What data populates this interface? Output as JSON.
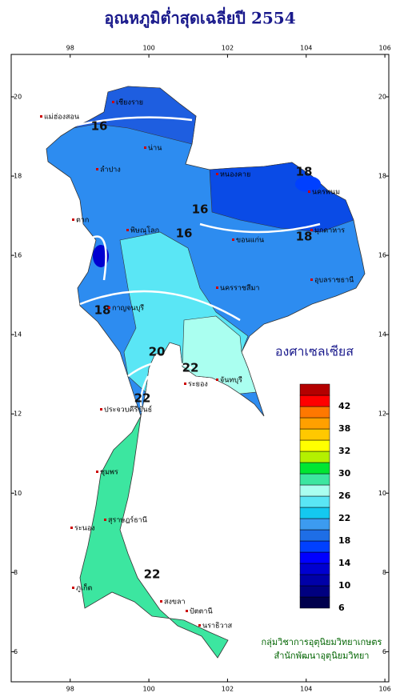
{
  "title": "อุณหภูมิต่ำสุดเฉลี่ยปี 2554",
  "map": {
    "xlim": [
      96.5,
      106.1
    ],
    "xticks": [
      98,
      100,
      102,
      104,
      106
    ],
    "ylim": [
      5.24,
      21.07
    ],
    "yticks": [
      6,
      8,
      10,
      12,
      14,
      16,
      18,
      20
    ]
  },
  "legend": {
    "title": "องศาเซลเซียส",
    "colors": [
      "#00004d",
      "#000080",
      "#0000a8",
      "#0000d0",
      "#0000ff",
      "#0040ff",
      "#1e6ee6",
      "#3c9bf0",
      "#14c8f0",
      "#5ae6f5",
      "#aafff0",
      "#3ce6a0",
      "#00e632",
      "#b4f000",
      "#ffff00",
      "#ffc800",
      "#ffa000",
      "#ff7800",
      "#ff0000",
      "#b40000"
    ],
    "labels": [
      6,
      10,
      14,
      18,
      22,
      26,
      30,
      32,
      38,
      42
    ]
  },
  "contour_labels": [
    16,
    18,
    16,
    16,
    18,
    18,
    20,
    22,
    22,
    22
  ],
  "places": [
    "เชียงราย",
    "แม่ฮ่องสอน",
    "น่าน",
    "ลำปาง",
    "หนองคาย",
    "นครพนม",
    "ตาก",
    "พิษณุโลก",
    "ขอนแก่น",
    "มุกดาหาร",
    "นครราชสีมา",
    "อุบลราชธานี",
    "กาญจนบุรี",
    "ระยอง",
    "จันทบุรี",
    "ประจวบคีรีขันธ์",
    "ชุมพร",
    "ระนอง",
    "สุราษฎร์ธานี",
    "ภูเก็ต",
    "สงขลา",
    "ปัตตานี",
    "นราธิวาส"
  ],
  "credits": [
    "กลุ่มวิชาการอุตุนิยมวิทยาเกษตร",
    "สำนักพัฒนาอุตุนิยมวิทยา"
  ]
}
